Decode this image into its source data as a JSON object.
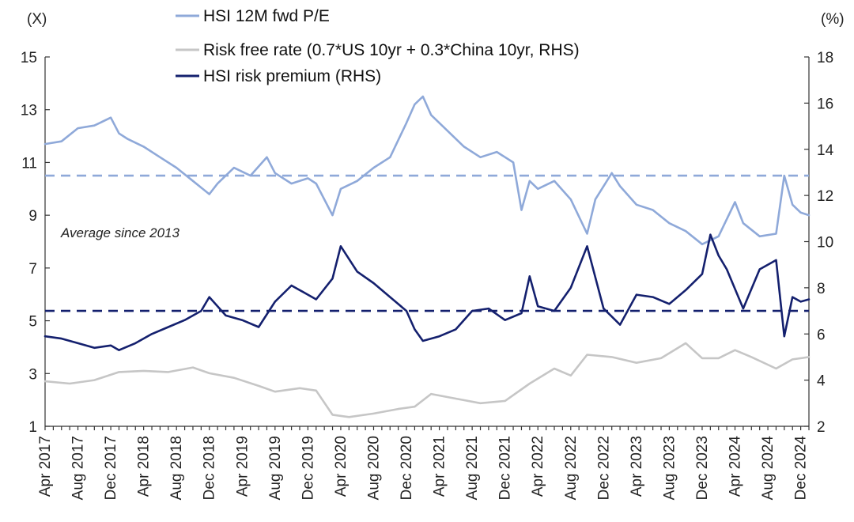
{
  "chart_data": {
    "type": "line",
    "left_axis": {
      "unit_label": "(X)",
      "range": [
        1,
        15
      ],
      "ticks": [
        1,
        3,
        5,
        7,
        9,
        11,
        13,
        15
      ],
      "tick_labels": [
        "1",
        "3",
        "5",
        "7",
        "9",
        "11",
        "13",
        "15"
      ]
    },
    "right_axis": {
      "unit_label": "(%)",
      "range": [
        2,
        18
      ],
      "ticks": [
        2,
        4,
        6,
        8,
        10,
        12,
        14,
        16,
        18
      ],
      "tick_labels": [
        "2",
        "4",
        "6",
        "8",
        "10",
        "12",
        "14",
        "16",
        "18"
      ]
    },
    "x_axis": {
      "start": "2017-04",
      "end": "2025-01",
      "tick_labels": [
        "Apr 2017",
        "Aug 2017",
        "Dec 2017",
        "Apr 2018",
        "Aug 2018",
        "Dec 2018",
        "Apr 2019",
        "Aug 2019",
        "Dec 2019",
        "Apr 2020",
        "Aug 2020",
        "Dec 2020",
        "Apr 2021",
        "Aug 2021",
        "Dec 2021",
        "Apr 2022",
        "Aug 2022",
        "Dec 2022",
        "Apr 2023",
        "Aug 2023",
        "Dec 2023",
        "Apr 2024",
        "Aug 2024",
        "Dec 2024"
      ]
    },
    "annotation": "Average since 2013",
    "series": [
      {
        "name": "HSI 12M fwd P/E",
        "axis": "left",
        "color": "#8fa9d9",
        "average_label": "Average since 2013",
        "average_value": 10.5,
        "months": [
          "2017-04",
          "2017-06",
          "2017-08",
          "2017-10",
          "2017-12",
          "2018-01",
          "2018-02",
          "2018-04",
          "2018-06",
          "2018-08",
          "2018-10",
          "2018-12",
          "2019-01",
          "2019-03",
          "2019-05",
          "2019-07",
          "2019-08",
          "2019-10",
          "2019-12",
          "2020-01",
          "2020-03",
          "2020-04",
          "2020-06",
          "2020-08",
          "2020-10",
          "2020-12",
          "2021-01",
          "2021-02",
          "2021-03",
          "2021-05",
          "2021-07",
          "2021-09",
          "2021-11",
          "2022-01",
          "2022-02",
          "2022-03",
          "2022-04",
          "2022-06",
          "2022-08",
          "2022-10",
          "2022-11",
          "2023-01",
          "2023-02",
          "2023-04",
          "2023-06",
          "2023-08",
          "2023-10",
          "2023-12",
          "2024-02",
          "2024-04",
          "2024-05",
          "2024-07",
          "2024-09",
          "2024-10",
          "2024-11",
          "2024-12",
          "2025-01"
        ],
        "values": [
          11.7,
          11.8,
          12.3,
          12.4,
          12.7,
          12.1,
          11.9,
          11.6,
          11.2,
          10.8,
          10.3,
          9.8,
          10.2,
          10.8,
          10.5,
          11.2,
          10.6,
          10.2,
          10.4,
          10.2,
          9.0,
          10.0,
          10.3,
          10.8,
          11.2,
          12.5,
          13.2,
          13.5,
          12.8,
          12.2,
          11.6,
          11.2,
          11.4,
          11.0,
          9.2,
          10.3,
          10.0,
          10.3,
          9.6,
          8.3,
          9.6,
          10.6,
          10.1,
          9.4,
          9.2,
          8.7,
          8.4,
          7.9,
          8.2,
          9.5,
          8.7,
          8.2,
          8.3,
          10.5,
          9.4,
          9.1,
          9.0
        ]
      },
      {
        "name": "Risk free rate (0.7*US 10yr + 0.3*China 10yr, RHS)",
        "axis": "right",
        "color": "#c6c6c6",
        "months": [
          "2017-04",
          "2017-07",
          "2017-10",
          "2018-01",
          "2018-04",
          "2018-07",
          "2018-10",
          "2018-12",
          "2019-03",
          "2019-06",
          "2019-08",
          "2019-11",
          "2020-01",
          "2020-03",
          "2020-05",
          "2020-08",
          "2020-11",
          "2021-01",
          "2021-03",
          "2021-06",
          "2021-09",
          "2021-12",
          "2022-03",
          "2022-06",
          "2022-08",
          "2022-10",
          "2023-01",
          "2023-04",
          "2023-07",
          "2023-10",
          "2023-12",
          "2024-02",
          "2024-04",
          "2024-06",
          "2024-09",
          "2024-11",
          "2025-01"
        ],
        "values": [
          3.95,
          3.85,
          4.0,
          4.35,
          4.4,
          4.35,
          4.55,
          4.3,
          4.1,
          3.75,
          3.5,
          3.65,
          3.55,
          2.5,
          2.4,
          2.55,
          2.75,
          2.85,
          3.4,
          3.2,
          3.0,
          3.1,
          3.85,
          4.5,
          4.2,
          5.1,
          5.0,
          4.75,
          4.95,
          5.6,
          4.95,
          4.95,
          5.3,
          5.0,
          4.5,
          4.9,
          5.0
        ]
      },
      {
        "name": "HSI risk premium (RHS)",
        "axis": "right",
        "color": "#14206e",
        "average_value": 7.0,
        "months": [
          "2017-04",
          "2017-06",
          "2017-08",
          "2017-10",
          "2017-12",
          "2018-01",
          "2018-03",
          "2018-05",
          "2018-07",
          "2018-09",
          "2018-11",
          "2018-12",
          "2019-02",
          "2019-04",
          "2019-06",
          "2019-08",
          "2019-10",
          "2019-12",
          "2020-01",
          "2020-03",
          "2020-04",
          "2020-06",
          "2020-08",
          "2020-10",
          "2020-12",
          "2021-01",
          "2021-02",
          "2021-04",
          "2021-06",
          "2021-08",
          "2021-10",
          "2021-12",
          "2022-02",
          "2022-03",
          "2022-04",
          "2022-06",
          "2022-08",
          "2022-10",
          "2022-12",
          "2023-02",
          "2023-04",
          "2023-06",
          "2023-08",
          "2023-10",
          "2023-12",
          "2024-01",
          "2024-02",
          "2024-03",
          "2024-05",
          "2024-07",
          "2024-09",
          "2024-10",
          "2024-11",
          "2024-12",
          "2025-01"
        ],
        "values": [
          5.9,
          5.8,
          5.6,
          5.4,
          5.5,
          5.3,
          5.6,
          6.0,
          6.3,
          6.6,
          7.0,
          7.6,
          6.8,
          6.6,
          6.3,
          7.4,
          8.1,
          7.7,
          7.5,
          8.4,
          9.8,
          8.7,
          8.2,
          7.6,
          7.0,
          6.2,
          5.7,
          5.9,
          6.2,
          7.0,
          7.1,
          6.6,
          6.9,
          8.5,
          7.2,
          7.0,
          8.0,
          9.8,
          7.1,
          6.4,
          7.7,
          7.6,
          7.3,
          7.9,
          8.6,
          10.3,
          9.4,
          8.8,
          7.1,
          8.8,
          9.2,
          5.9,
          7.6,
          7.4,
          7.5
        ]
      }
    ]
  }
}
